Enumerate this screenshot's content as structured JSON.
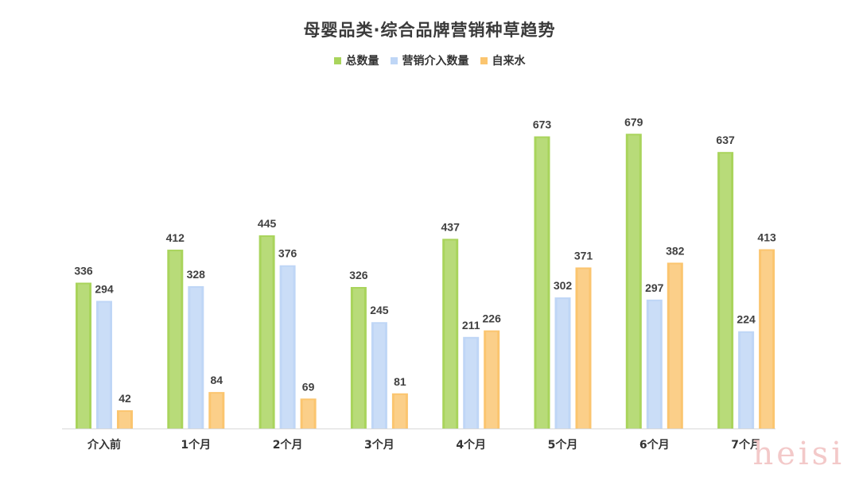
{
  "chart_data": {
    "type": "bar",
    "title": "母婴品类·综合品牌营销种草趋势",
    "categories": [
      "介入前",
      "1个月",
      "2个月",
      "3个月",
      "4个月",
      "5个月",
      "6个月",
      "7个月"
    ],
    "series": [
      {
        "name": "总数量",
        "color": "#a9d45c",
        "values": [
          336,
          412,
          445,
          326,
          437,
          673,
          679,
          637
        ]
      },
      {
        "name": "营销介入数量",
        "color": "#bfd6f6",
        "values": [
          294,
          328,
          376,
          245,
          211,
          302,
          297,
          224
        ]
      },
      {
        "name": "自来水",
        "color": "#fbc56f",
        "values": [
          42,
          84,
          69,
          81,
          226,
          371,
          382,
          413
        ]
      }
    ],
    "ylim": [
      0,
      680
    ],
    "grid": false,
    "legend_position": "top-center"
  },
  "watermark": "heisi"
}
